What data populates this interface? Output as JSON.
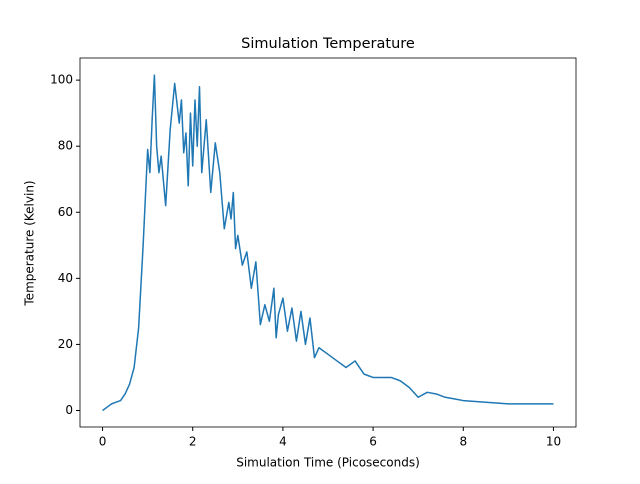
{
  "chart_data": {
    "type": "line",
    "title": "Simulation Temperature",
    "x_label": "Simulation Time (Picoseconds)",
    "y_label": "Temperature (Kelvin)",
    "x": [
      0,
      0.1,
      0.2,
      0.3,
      0.4,
      0.5,
      0.6,
      0.7,
      0.8,
      0.9,
      1.0,
      1.05,
      1.1,
      1.15,
      1.2,
      1.25,
      1.3,
      1.4,
      1.5,
      1.6,
      1.7,
      1.75,
      1.8,
      1.85,
      1.9,
      1.95,
      2.0,
      2.05,
      2.1,
      2.15,
      2.2,
      2.3,
      2.4,
      2.5,
      2.6,
      2.7,
      2.8,
      2.85,
      2.9,
      2.95,
      3.0,
      3.1,
      3.2,
      3.3,
      3.4,
      3.5,
      3.6,
      3.7,
      3.8,
      3.85,
      3.9,
      4.0,
      4.1,
      4.2,
      4.3,
      4.4,
      4.5,
      4.6,
      4.7,
      4.8,
      5.0,
      5.2,
      5.4,
      5.6,
      5.8,
      6.0,
      6.2,
      6.4,
      6.6,
      6.8,
      7.0,
      7.2,
      7.4,
      7.6,
      7.8,
      8.0,
      8.5,
      9.0,
      9.5,
      10.0
    ],
    "series": [
      {
        "name": "Temperature",
        "color": "#1f77b4",
        "values": [
          0,
          1,
          2,
          2.5,
          3,
          5,
          8,
          13,
          25,
          50,
          79,
          72,
          88,
          101.5,
          80,
          72,
          77,
          62,
          85,
          99,
          87,
          94,
          78,
          84,
          68,
          90,
          74,
          94,
          80,
          98,
          72,
          88,
          66,
          81,
          72,
          55,
          63,
          58,
          66,
          49,
          53,
          44,
          48,
          37,
          45,
          26,
          32,
          27,
          37,
          22,
          29,
          34,
          24,
          31,
          21,
          30,
          20,
          28,
          16,
          19,
          17,
          15,
          13,
          15,
          11,
          10,
          10,
          10,
          9,
          7,
          4,
          5.5,
          5,
          4,
          3.5,
          3,
          2.5,
          2,
          2,
          2
        ]
      }
    ],
    "xlim": [
      -0.5,
      10.5
    ],
    "ylim": [
      -5,
      106.7
    ],
    "xticks": [
      0,
      2,
      4,
      6,
      8,
      10
    ],
    "yticks": [
      0,
      20,
      40,
      60,
      80,
      100
    ]
  }
}
